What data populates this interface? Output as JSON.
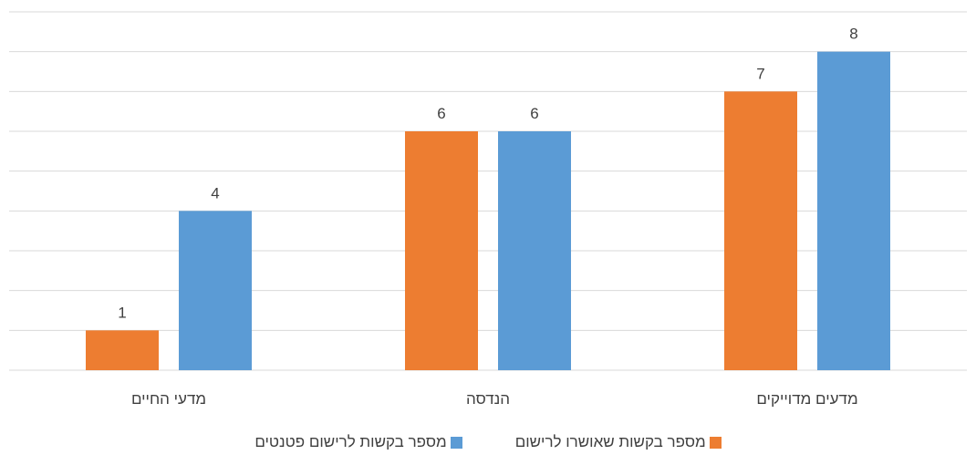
{
  "chart_data": {
    "type": "bar",
    "categories": [
      "מדעים מדוייקים",
      "הנדסה",
      "מדעי החיים"
    ],
    "series": [
      {
        "name": "מספר בקשות לרישום פטנטים",
        "values": [
          8,
          6,
          4
        ],
        "color": "#5b9bd5"
      },
      {
        "name": "מספר בקשות שאושרו לרישום",
        "values": [
          7,
          6,
          1
        ],
        "color": "#ed7d31"
      }
    ],
    "ylim": [
      0,
      9
    ],
    "grid": true,
    "legend_position": "bottom",
    "direction": "rtl"
  }
}
